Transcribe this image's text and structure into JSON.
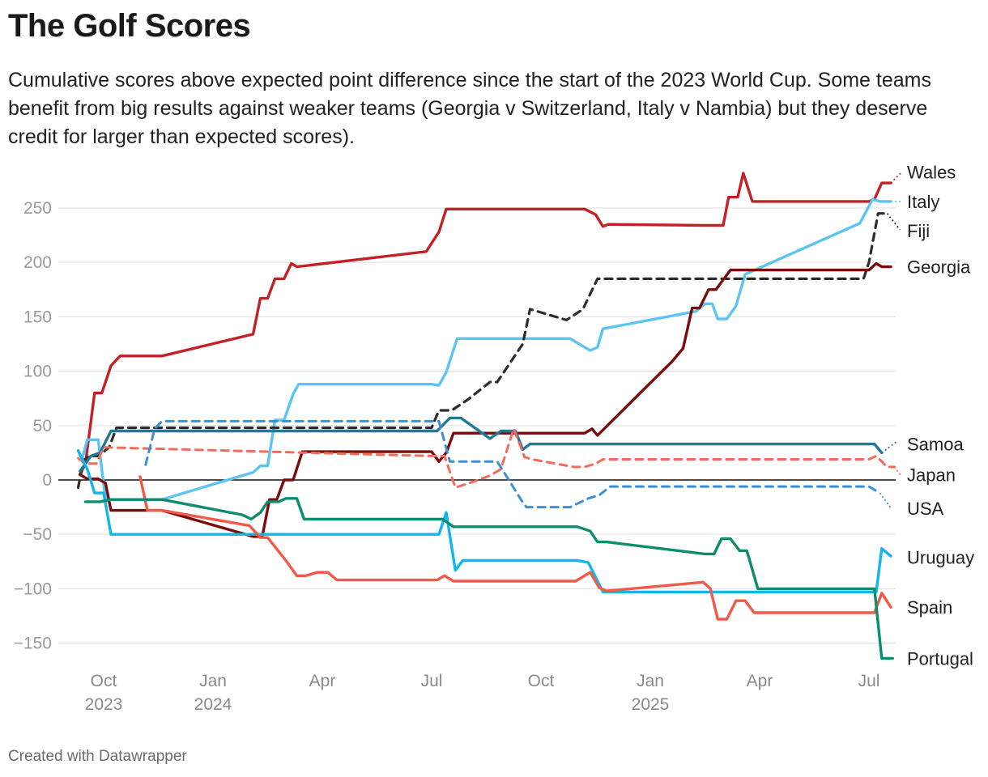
{
  "title": "The Golf Scores",
  "subtitle": "Cumulative scores above expected point difference since the start of the 2023 World Cup. Some teams benefit from big results against weaker teams (Georgia v Switzerland, Italy v Nambia) but they deserve credit for larger than expected scores).",
  "footer": "Created with Datawrapper",
  "chart_data": {
    "type": "line",
    "title": "The Golf Scores",
    "xlabel": "",
    "ylabel": "",
    "x_unit": "months since 1 Oct 2023 (0 = Oct 2023, 21 = Jul 2025)",
    "xlim": [
      -0.6,
      21.9
    ],
    "ylim": [
      -165,
      285
    ],
    "y_ticks": [
      -150,
      -100,
      -50,
      0,
      50,
      100,
      150,
      200,
      250
    ],
    "y_tick_labels": [
      "−150",
      "−100",
      "−50",
      "0",
      "50",
      "100",
      "150",
      "200",
      "250"
    ],
    "x_ticks": [
      {
        "value": 0,
        "line1": "Oct",
        "line2": "2023"
      },
      {
        "value": 3,
        "line1": "Jan",
        "line2": "2024"
      },
      {
        "value": 6,
        "line1": "Apr",
        "line2": ""
      },
      {
        "value": 9,
        "line1": "Jul",
        "line2": ""
      },
      {
        "value": 12,
        "line1": "Oct",
        "line2": ""
      },
      {
        "value": 15,
        "line1": "Jan",
        "line2": "2025"
      },
      {
        "value": 18,
        "line1": "Apr",
        "line2": ""
      },
      {
        "value": 21,
        "line1": "Jul",
        "line2": ""
      }
    ],
    "grid": true,
    "legend": "direct labels at right end of lines",
    "series": [
      {
        "name": "Wales",
        "color": "#c42126",
        "dashed": false,
        "width": 3.4,
        "points": [
          [
            -0.65,
            5
          ],
          [
            -0.5,
            15
          ],
          [
            -0.25,
            80
          ],
          [
            -0.05,
            80
          ],
          [
            0.2,
            105
          ],
          [
            0.45,
            114
          ],
          [
            1.6,
            114
          ],
          [
            4.1,
            134
          ],
          [
            4.3,
            167
          ],
          [
            4.5,
            167
          ],
          [
            4.7,
            185
          ],
          [
            4.95,
            185
          ],
          [
            5.15,
            199
          ],
          [
            5.3,
            196
          ],
          [
            8.85,
            210
          ],
          [
            9.2,
            228
          ],
          [
            9.4,
            249
          ],
          [
            13.2,
            249
          ],
          [
            13.5,
            244
          ],
          [
            13.7,
            233
          ],
          [
            13.85,
            235
          ],
          [
            16.5,
            234
          ],
          [
            17.0,
            234
          ],
          [
            17.15,
            260
          ],
          [
            17.4,
            260
          ],
          [
            17.55,
            282
          ],
          [
            17.8,
            256
          ],
          [
            21.0,
            256
          ],
          [
            21.15,
            258
          ],
          [
            21.35,
            273
          ],
          [
            21.6,
            273
          ]
        ],
        "tail": [
          [
            21.6,
            273
          ],
          [
            21.9,
            283
          ]
        ]
      },
      {
        "name": "Italy",
        "color": "#5bc4f1",
        "dashed": false,
        "width": 3.4,
        "points": [
          [
            -0.6,
            18
          ],
          [
            -0.45,
            37
          ],
          [
            -0.15,
            37
          ],
          [
            0.05,
            -18
          ],
          [
            1.6,
            -18
          ],
          [
            4.1,
            7
          ],
          [
            4.3,
            13
          ],
          [
            4.5,
            13
          ],
          [
            4.7,
            55
          ],
          [
            4.95,
            55
          ],
          [
            5.2,
            79
          ],
          [
            5.35,
            88
          ],
          [
            9.0,
            88
          ],
          [
            9.2,
            87
          ],
          [
            9.4,
            99
          ],
          [
            9.7,
            130
          ],
          [
            12.8,
            130
          ],
          [
            13.35,
            119
          ],
          [
            13.55,
            122
          ],
          [
            13.7,
            139
          ],
          [
            16.25,
            155
          ],
          [
            16.5,
            162
          ],
          [
            16.7,
            162
          ],
          [
            16.85,
            148
          ],
          [
            17.1,
            148
          ],
          [
            17.35,
            160
          ],
          [
            17.6,
            189
          ],
          [
            20.75,
            236
          ],
          [
            21.1,
            258
          ],
          [
            21.3,
            256
          ],
          [
            21.6,
            256
          ]
        ],
        "tail": [
          [
            21.6,
            256
          ],
          [
            21.9,
            256
          ]
        ]
      },
      {
        "name": "Fiji",
        "color": "#2d2d2d",
        "dashed": true,
        "width": 3.2,
        "points": [
          [
            -0.7,
            -7
          ],
          [
            -0.55,
            18
          ],
          [
            -0.4,
            22
          ],
          [
            -0.15,
            22
          ],
          [
            0.15,
            30
          ],
          [
            0.35,
            48
          ],
          [
            9.0,
            48
          ],
          [
            9.2,
            64
          ],
          [
            9.55,
            64
          ],
          [
            10.0,
            74
          ],
          [
            10.6,
            90
          ],
          [
            10.8,
            90
          ],
          [
            11.5,
            125
          ],
          [
            11.7,
            157
          ],
          [
            12.7,
            147
          ],
          [
            13.15,
            157
          ],
          [
            13.55,
            185
          ],
          [
            20.85,
            185
          ],
          [
            21.0,
            200
          ],
          [
            21.25,
            245
          ],
          [
            21.5,
            245
          ]
        ],
        "tail": [
          [
            21.5,
            245
          ],
          [
            21.85,
            230
          ]
        ]
      },
      {
        "name": "Georgia",
        "color": "#7a0c0c",
        "dashed": false,
        "width": 3.4,
        "points": [
          [
            -0.65,
            5
          ],
          [
            -0.45,
            1
          ],
          [
            -0.15,
            1
          ],
          [
            0.05,
            -3
          ],
          [
            0.2,
            -28
          ],
          [
            1.6,
            -28
          ],
          [
            4.1,
            -52
          ],
          [
            4.35,
            -52
          ],
          [
            4.55,
            -18
          ],
          [
            4.75,
            -18
          ],
          [
            4.95,
            0
          ],
          [
            5.2,
            0
          ],
          [
            5.45,
            26
          ],
          [
            9.0,
            26
          ],
          [
            9.2,
            17
          ],
          [
            9.4,
            25
          ],
          [
            9.6,
            43
          ],
          [
            13.2,
            43
          ],
          [
            13.4,
            47
          ],
          [
            13.55,
            41
          ],
          [
            15.6,
            109
          ],
          [
            15.9,
            121
          ],
          [
            16.15,
            158
          ],
          [
            16.35,
            158
          ],
          [
            16.6,
            175
          ],
          [
            16.8,
            175
          ],
          [
            17.2,
            193
          ],
          [
            21.0,
            193
          ],
          [
            21.2,
            199
          ],
          [
            21.35,
            196
          ],
          [
            21.6,
            196
          ]
        ],
        "tail": []
      },
      {
        "name": "Samoa",
        "color": "#1f7a99",
        "dashed": false,
        "width": 3.4,
        "points": [
          [
            -0.65,
            8
          ],
          [
            -0.35,
            22
          ],
          [
            -0.1,
            25
          ],
          [
            0.2,
            45
          ],
          [
            9.15,
            45
          ],
          [
            9.5,
            57
          ],
          [
            9.8,
            57
          ],
          [
            10.6,
            38
          ],
          [
            10.9,
            45
          ],
          [
            11.3,
            45
          ],
          [
            11.5,
            28
          ],
          [
            11.7,
            33
          ],
          [
            21.0,
            33
          ],
          [
            21.15,
            33
          ],
          [
            21.35,
            25
          ]
        ],
        "tail": [
          [
            21.35,
            25
          ],
          [
            21.75,
            35
          ]
        ]
      },
      {
        "name": "Japan",
        "color": "#f26b5b",
        "dashed": true,
        "width": 3.0,
        "points": [
          [
            -0.7,
            20
          ],
          [
            -0.5,
            15
          ],
          [
            -0.2,
            15
          ],
          [
            0.0,
            30
          ],
          [
            9.0,
            22
          ],
          [
            9.35,
            22
          ],
          [
            9.65,
            -7
          ],
          [
            10.2,
            -1
          ],
          [
            10.6,
            4
          ],
          [
            10.9,
            10
          ],
          [
            11.25,
            47
          ],
          [
            11.55,
            21
          ],
          [
            11.75,
            19
          ],
          [
            12.9,
            12
          ],
          [
            13.2,
            12
          ],
          [
            13.5,
            15
          ],
          [
            13.7,
            19
          ],
          [
            21.0,
            19
          ],
          [
            21.2,
            22
          ],
          [
            21.5,
            12
          ],
          [
            21.7,
            12
          ]
        ],
        "tail": [
          [
            21.7,
            12
          ],
          [
            21.9,
            3
          ]
        ]
      },
      {
        "name": "USA",
        "color": "#3a8fd6",
        "dashed": true,
        "width": 3.0,
        "points": [
          [
            1.15,
            14
          ],
          [
            1.4,
            47
          ],
          [
            1.6,
            54
          ],
          [
            8.9,
            54
          ],
          [
            9.2,
            54
          ],
          [
            9.5,
            17
          ],
          [
            10.8,
            17
          ],
          [
            11.1,
            1
          ],
          [
            11.45,
            -18
          ],
          [
            11.6,
            -25
          ],
          [
            12.8,
            -25
          ],
          [
            13.3,
            -17
          ],
          [
            13.6,
            -14
          ],
          [
            13.9,
            -6
          ],
          [
            21.0,
            -6
          ],
          [
            21.3,
            -12
          ]
        ],
        "tail": [
          [
            21.3,
            -12
          ],
          [
            21.6,
            -26
          ]
        ]
      },
      {
        "name": "Uruguay",
        "color": "#12b6ec",
        "dashed": false,
        "width": 3.4,
        "points": [
          [
            -0.7,
            27
          ],
          [
            -0.45,
            10
          ],
          [
            -0.25,
            -12
          ],
          [
            0.0,
            -12
          ],
          [
            0.2,
            -50
          ],
          [
            9.2,
            -50
          ],
          [
            9.4,
            -30
          ],
          [
            9.65,
            -83
          ],
          [
            9.85,
            -74
          ],
          [
            13.0,
            -74
          ],
          [
            13.3,
            -76
          ],
          [
            13.7,
            -103
          ],
          [
            21.0,
            -103
          ],
          [
            21.2,
            -103
          ],
          [
            21.35,
            -63
          ],
          [
            21.6,
            -70
          ]
        ],
        "tail": []
      },
      {
        "name": "Spain",
        "color": "#f05a4a",
        "dashed": false,
        "width": 3.4,
        "points": [
          [
            1.0,
            3
          ],
          [
            1.2,
            -28
          ],
          [
            1.6,
            -28
          ],
          [
            4.0,
            -42
          ],
          [
            4.3,
            -53
          ],
          [
            4.5,
            -53
          ],
          [
            5.0,
            -74
          ],
          [
            5.3,
            -88
          ],
          [
            5.55,
            -88
          ],
          [
            5.85,
            -85
          ],
          [
            6.15,
            -85
          ],
          [
            6.4,
            -92
          ],
          [
            9.15,
            -92
          ],
          [
            9.35,
            -88
          ],
          [
            9.6,
            -93
          ],
          [
            12.95,
            -93
          ],
          [
            13.35,
            -85
          ],
          [
            13.6,
            -99
          ],
          [
            13.8,
            -102
          ],
          [
            16.45,
            -94
          ],
          [
            16.65,
            -100
          ],
          [
            16.85,
            -128
          ],
          [
            17.1,
            -128
          ],
          [
            17.35,
            -111
          ],
          [
            17.6,
            -111
          ],
          [
            17.85,
            -122
          ],
          [
            21.0,
            -122
          ],
          [
            21.15,
            -122
          ],
          [
            21.35,
            -104
          ],
          [
            21.6,
            -117
          ]
        ],
        "tail": []
      },
      {
        "name": "Portugal",
        "color": "#0d8c6e",
        "dashed": false,
        "width": 3.4,
        "points": [
          [
            -0.5,
            -20
          ],
          [
            -0.1,
            -20
          ],
          [
            0.2,
            -18
          ],
          [
            1.6,
            -18
          ],
          [
            3.8,
            -32
          ],
          [
            4.05,
            -36
          ],
          [
            4.3,
            -30
          ],
          [
            4.5,
            -20
          ],
          [
            4.8,
            -20
          ],
          [
            5.0,
            -17
          ],
          [
            5.3,
            -17
          ],
          [
            5.5,
            -36
          ],
          [
            9.3,
            -36
          ],
          [
            9.6,
            -43
          ],
          [
            13.0,
            -43
          ],
          [
            13.35,
            -47
          ],
          [
            13.55,
            -57
          ],
          [
            13.8,
            -57
          ],
          [
            16.5,
            -68
          ],
          [
            16.75,
            -68
          ],
          [
            16.95,
            -54
          ],
          [
            17.2,
            -54
          ],
          [
            17.45,
            -65
          ],
          [
            17.65,
            -65
          ],
          [
            17.95,
            -100
          ],
          [
            21.0,
            -100
          ],
          [
            21.15,
            -100
          ],
          [
            21.35,
            -164
          ],
          [
            21.65,
            -164
          ]
        ],
        "tail": []
      }
    ],
    "labels": [
      {
        "name": "Wales",
        "value": 283
      },
      {
        "name": "Italy",
        "value": 256
      },
      {
        "name": "Fiji",
        "value": 229
      },
      {
        "name": "Georgia",
        "value": 196
      },
      {
        "name": "Samoa",
        "value": 33
      },
      {
        "name": "Japan",
        "value": 5
      },
      {
        "name": "USA",
        "value": -26
      },
      {
        "name": "Uruguay",
        "value": -71
      },
      {
        "name": "Spain",
        "value": -117
      },
      {
        "name": "Portugal",
        "value": -164
      }
    ]
  }
}
